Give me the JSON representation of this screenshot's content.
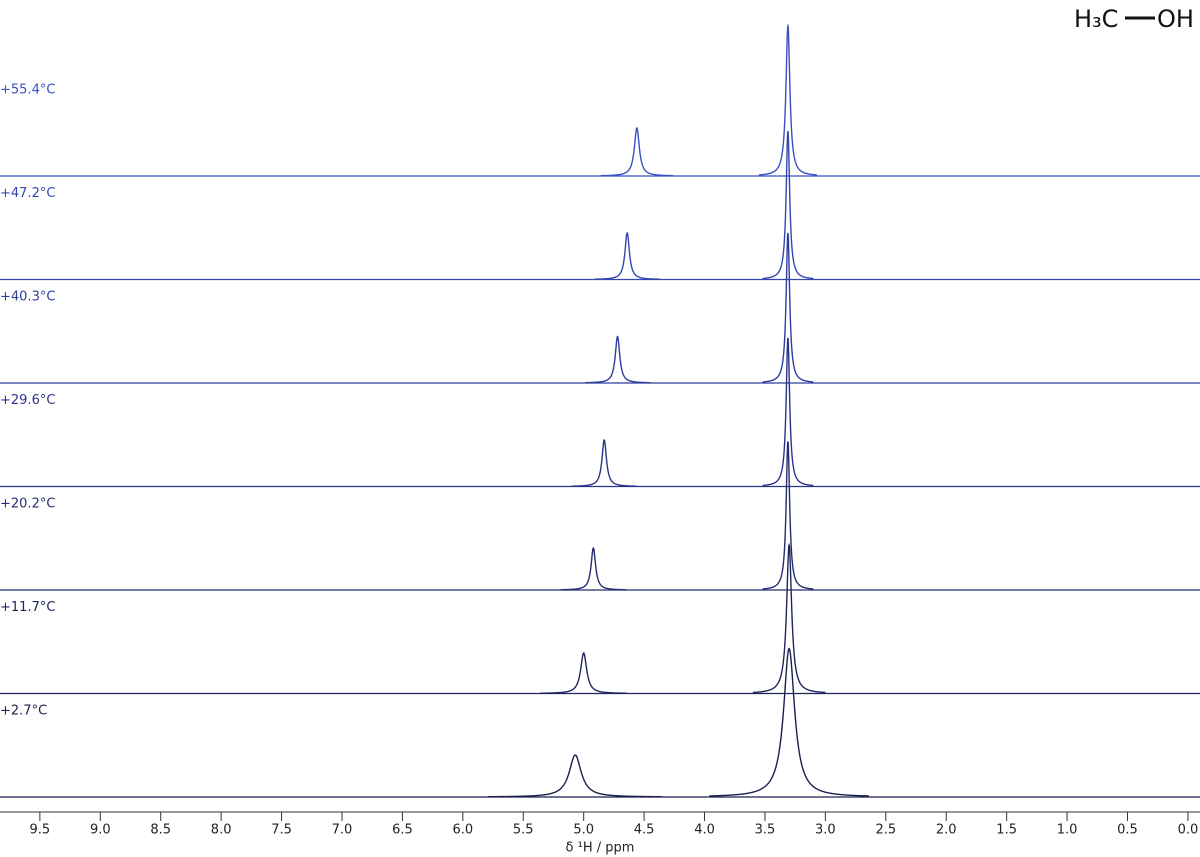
{
  "chart_data": {
    "type": "stacked-spectra",
    "x_label": "δ ¹H / ppm",
    "molecule": [
      "H₃C",
      "OH"
    ],
    "xlim": [
      9.83,
      -0.1
    ],
    "xticks": [
      9.5,
      {
        "value": 9,
        "label": "9.0"
      },
      8.5,
      {
        "value": 8,
        "label": "8.0"
      },
      7.5,
      {
        "value": 7,
        "label": "7.0"
      },
      6.5,
      {
        "value": 6,
        "label": "6.0"
      },
      5.5,
      {
        "value": 5,
        "label": "5.0"
      },
      4.5,
      {
        "value": 4,
        "label": "4.0"
      },
      3.5,
      {
        "value": 3,
        "label": "3.0"
      },
      2.5,
      {
        "value": 2,
        "label": "2.0"
      },
      1.5,
      {
        "value": 1,
        "label": "1.0"
      },
      0.5,
      {
        "value": 0,
        "label": "0.0"
      }
    ],
    "series": [
      {
        "name": "+55.4°C",
        "color": "#3a4fc4",
        "x": [
          4.56,
          3.31
        ],
        "values": [
          32,
          100
        ],
        "widths": [
          0.05,
          0.04
        ]
      },
      {
        "name": "+47.2°C",
        "color": "#3446b2",
        "x": [
          4.64,
          3.31
        ],
        "values": [
          31,
          99
        ],
        "widths": [
          0.045,
          0.035
        ]
      },
      {
        "name": "+40.3°C",
        "color": "#2f3d9e",
        "x": [
          4.72,
          3.31
        ],
        "values": [
          31,
          100
        ],
        "widths": [
          0.045,
          0.035
        ]
      },
      {
        "name": "+29.6°C",
        "color": "#2a3488",
        "x": [
          4.83,
          3.31
        ],
        "values": [
          31,
          99
        ],
        "widths": [
          0.045,
          0.035
        ]
      },
      {
        "name": "+20.2°C",
        "color": "#252c72",
        "x": [
          4.92,
          3.31
        ],
        "values": [
          28,
          99
        ],
        "widths": [
          0.045,
          0.035
        ]
      },
      {
        "name": "+11.7°C",
        "color": "#20255e",
        "x": [
          5.0,
          3.3
        ],
        "values": [
          27,
          99
        ],
        "widths": [
          0.06,
          0.05
        ]
      },
      {
        "name": "+2.7°C",
        "color": "#1b1f4c",
        "x": [
          5.07,
          3.3
        ],
        "values": [
          28,
          99
        ],
        "widths": [
          0.12,
          0.11
        ]
      }
    ]
  }
}
